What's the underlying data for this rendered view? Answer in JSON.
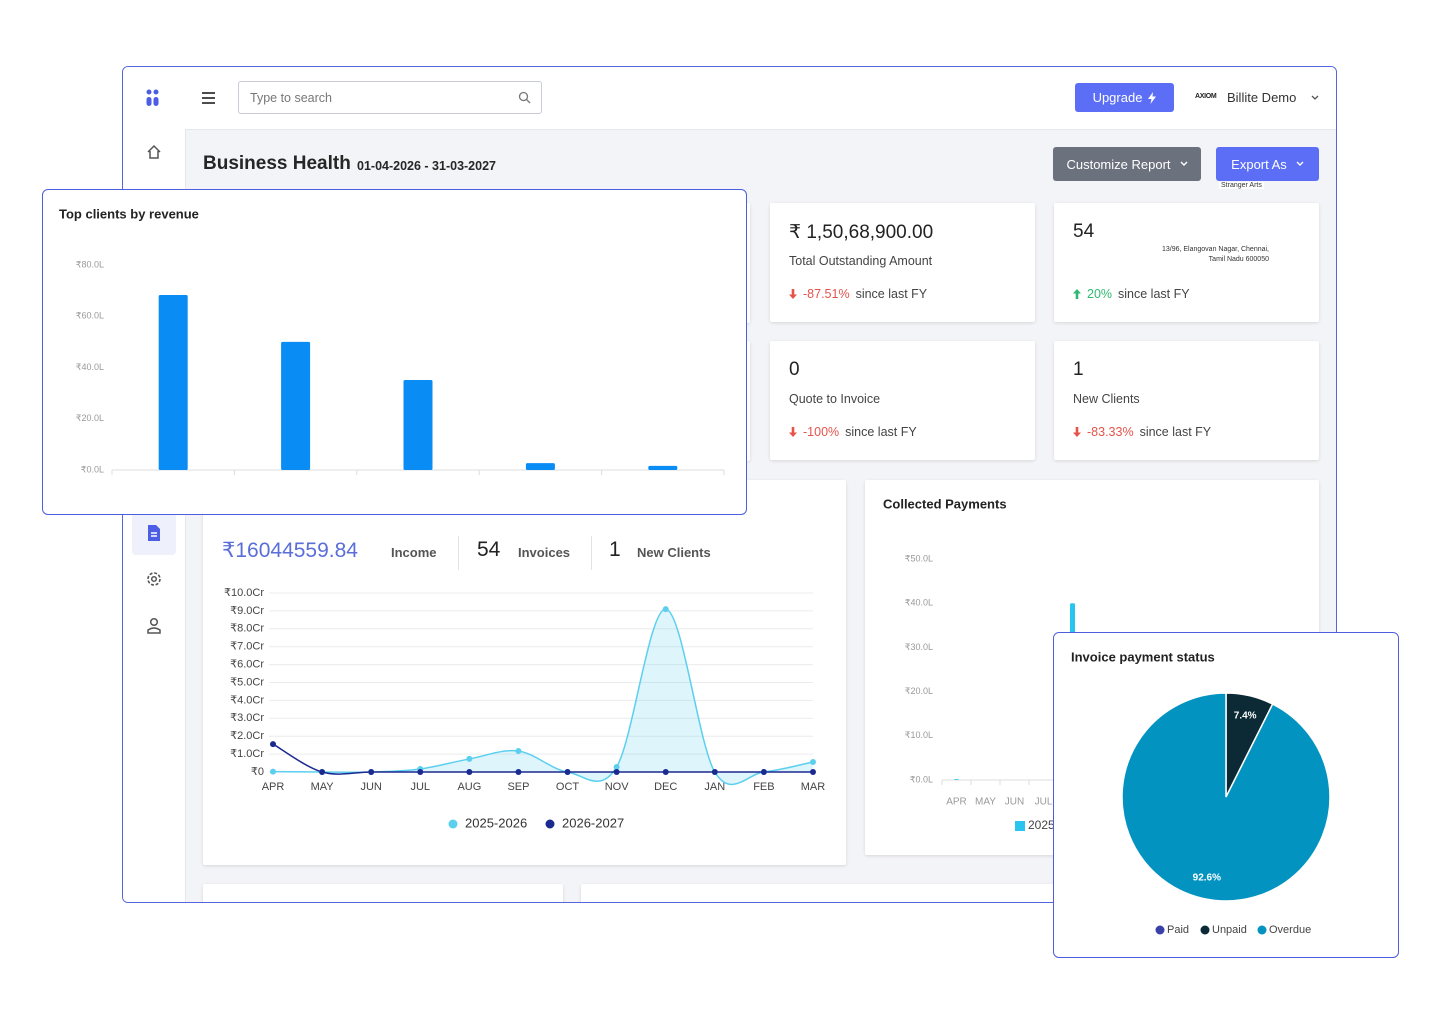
{
  "header": {
    "search_placeholder": "Type to search",
    "upgrade": "Upgrade",
    "brand_logo": "AXIOM",
    "user": "Billite Demo"
  },
  "page": {
    "title": "Business Health",
    "date_range": "01-04-2026 - 31-03-2027",
    "customize": "Customize Report",
    "export": "Export As",
    "tooltip": "Stranger Arts",
    "address_line1": "13/96, Elangovan Nagar, Chennai,",
    "address_line2": "Tamil Nadu 600050"
  },
  "kpis": [
    {
      "value": "₹ 1,50,68,900.00",
      "label": "Total Outstanding Amount",
      "change": "-87.51%",
      "since": "since last FY",
      "direction": "down"
    },
    {
      "value": "54",
      "change": "20%",
      "since": "since last FY",
      "direction": "up"
    },
    {
      "value": "0",
      "label": "Quote to Invoice",
      "change": "-100%",
      "since": "since last FY",
      "direction": "down"
    },
    {
      "value": "1",
      "label": "New Clients",
      "change": "-83.33%",
      "since": "since last FY",
      "direction": "down"
    }
  ],
  "summary": {
    "income": "₹16044559.84",
    "income_label": "Income",
    "invoices": "54",
    "invoices_label": "Invoices",
    "clients": "1",
    "clients_label": "New Clients"
  },
  "chart_data": [
    {
      "type": "bar",
      "title": "Top clients by revenue",
      "categories": [
        null,
        null,
        null,
        null,
        null
      ],
      "values": [
        68.3,
        50,
        35.1,
        2.7,
        1.6
      ],
      "color": "#0a8cf5",
      "ylim": [
        0,
        80
      ],
      "yticks": [
        {
          "value": 0,
          "label": "₹0.0L"
        },
        {
          "value": 20,
          "label": "₹20.0L"
        },
        {
          "value": 40,
          "label": "₹40.0L"
        },
        {
          "value": 60,
          "label": "₹60.0L"
        },
        {
          "value": 80,
          "label": "₹80.0L"
        }
      ],
      "grid": false
    },
    {
      "type": "line",
      "categories": [
        "APR",
        "MAY",
        "JUN",
        "JUL",
        "AUG",
        "SEP",
        "OCT",
        "NOV",
        "DEC",
        "JAN",
        "FEB",
        "MAR"
      ],
      "series": [
        {
          "name": "2025-2026",
          "color": "#5ccfee",
          "area": true,
          "values": [
            0.02,
            0,
            0,
            0.17,
            0.73,
            1.17,
            0,
            0.28,
            9.1,
            0,
            0,
            0.56
          ]
        },
        {
          "name": "2026-2027",
          "color": "#1b2a8f",
          "area": false,
          "values": [
            1.56,
            0,
            0,
            0,
            0,
            0,
            0,
            0,
            0,
            0,
            0,
            0
          ]
        }
      ],
      "ylim": [
        0,
        10
      ],
      "yticks": [
        {
          "value": 0,
          "label": "₹0"
        },
        {
          "value": 1,
          "label": "₹1.0Cr"
        },
        {
          "value": 2,
          "label": "₹2.0Cr"
        },
        {
          "value": 3,
          "label": "₹3.0Cr"
        },
        {
          "value": 4,
          "label": "₹4.0Cr"
        },
        {
          "value": 5,
          "label": "₹5.0Cr"
        },
        {
          "value": 6,
          "label": "₹6.0Cr"
        },
        {
          "value": 7,
          "label": "₹7.0Cr"
        },
        {
          "value": 8,
          "label": "₹8.0Cr"
        },
        {
          "value": 9,
          "label": "₹9.0Cr"
        },
        {
          "value": 10,
          "label": "₹10.0Cr"
        }
      ],
      "grid": true
    },
    {
      "type": "bar",
      "title": "Collected Payments",
      "categories": [
        "APR",
        "MAY",
        "JUN",
        "JUL",
        null,
        null,
        null,
        null,
        null,
        null,
        null,
        null
      ],
      "series": [
        {
          "name": "2025",
          "color": "#29c4f0",
          "values": [
            0.2,
            0,
            0,
            0,
            40,
            null,
            null,
            null,
            null,
            null,
            null,
            null
          ]
        }
      ],
      "ylim": [
        0,
        50
      ],
      "yticks": [
        {
          "value": 0,
          "label": "₹0.0L"
        },
        {
          "value": 10,
          "label": "₹10.0L"
        },
        {
          "value": 20,
          "label": "₹20.0L"
        },
        {
          "value": 30,
          "label": "₹30.0L"
        },
        {
          "value": 40,
          "label": "₹40.0L"
        },
        {
          "value": 50,
          "label": "₹50.0L"
        }
      ],
      "grid": false
    },
    {
      "type": "pie",
      "title": "Invoice payment status",
      "categories": [
        "Paid",
        "Unpaid",
        "Overdue"
      ],
      "values": [
        0,
        7.4,
        92.6
      ],
      "value_labels": [
        null,
        "7.4%",
        "92.6%"
      ],
      "colors": [
        "#3b40a8",
        "#0b2a35",
        "#0393c1"
      ]
    }
  ]
}
